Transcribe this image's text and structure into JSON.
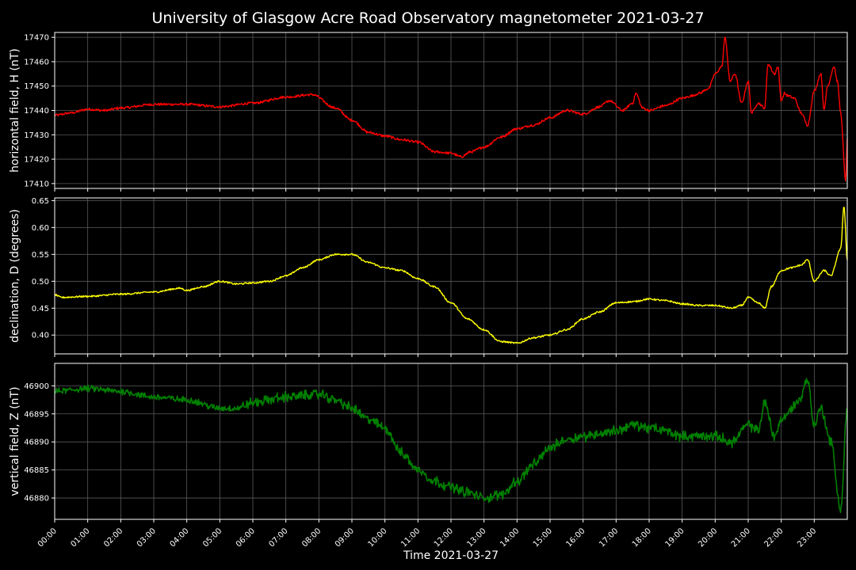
{
  "chart_data": {
    "title": "University of Glasgow Acre Road Observatory magnetometer 2021-03-27",
    "xlabel": "Time 2021-03-27",
    "x_ticks": [
      "00:00",
      "01:00",
      "02:00",
      "03:00",
      "04:00",
      "05:00",
      "06:00",
      "07:00",
      "08:00",
      "09:00",
      "10:00",
      "11:00",
      "12:00",
      "13:00",
      "14:00",
      "15:00",
      "16:00",
      "17:00",
      "18:00",
      "19:00",
      "20:00",
      "21:00",
      "22:00",
      "23:00"
    ],
    "xlim_hours": [
      0,
      24
    ],
    "grid": true,
    "background": "#000000",
    "panels": [
      {
        "type": "line",
        "ylabel": "horizontal field, H (nT)",
        "color": "#ff0000",
        "ylim": [
          17408,
          17472
        ],
        "yticks": [
          17410,
          17420,
          17430,
          17440,
          17450,
          17460,
          17470
        ],
        "tick_decimals": 0,
        "noise": 0.5,
        "points": [
          [
            0,
            17438
          ],
          [
            0.5,
            17439
          ],
          [
            1,
            17440.5
          ],
          [
            1.5,
            17440
          ],
          [
            2,
            17441
          ],
          [
            3,
            17442.5
          ],
          [
            4,
            17442.5
          ],
          [
            5,
            17441.5
          ],
          [
            6,
            17443
          ],
          [
            7,
            17445.5
          ],
          [
            7.8,
            17446.5
          ],
          [
            8.5,
            17441
          ],
          [
            9,
            17436
          ],
          [
            9.5,
            17431
          ],
          [
            10,
            17429.5
          ],
          [
            10.5,
            17428
          ],
          [
            11,
            17427
          ],
          [
            11.5,
            17423
          ],
          [
            12,
            17422.5
          ],
          [
            12.3,
            17421
          ],
          [
            12.6,
            17423
          ],
          [
            13,
            17425
          ],
          [
            13.5,
            17429
          ],
          [
            14,
            17432.5
          ],
          [
            14.5,
            17434
          ],
          [
            15,
            17437
          ],
          [
            15.5,
            17440
          ],
          [
            16,
            17438.5
          ],
          [
            16.5,
            17441.5
          ],
          [
            16.8,
            17444
          ],
          [
            17.2,
            17440
          ],
          [
            17.5,
            17443
          ],
          [
            17.6,
            17447
          ],
          [
            17.8,
            17441
          ],
          [
            18,
            17440
          ],
          [
            18.5,
            17442
          ],
          [
            19,
            17445
          ],
          [
            19.3,
            17446
          ],
          [
            19.5,
            17447
          ],
          [
            19.8,
            17449
          ],
          [
            20,
            17455
          ],
          [
            20.2,
            17458
          ],
          [
            20.3,
            17470
          ],
          [
            20.45,
            17452
          ],
          [
            20.6,
            17455
          ],
          [
            20.8,
            17443
          ],
          [
            21,
            17452
          ],
          [
            21.1,
            17439
          ],
          [
            21.3,
            17443
          ],
          [
            21.5,
            17441
          ],
          [
            21.6,
            17459
          ],
          [
            21.8,
            17455
          ],
          [
            21.9,
            17458
          ],
          [
            22,
            17444
          ],
          [
            22.1,
            17447
          ],
          [
            22.2,
            17446
          ],
          [
            22.4,
            17445
          ],
          [
            22.6,
            17439
          ],
          [
            22.8,
            17434
          ],
          [
            23,
            17448
          ],
          [
            23.2,
            17455
          ],
          [
            23.3,
            17440
          ],
          [
            23.4,
            17450
          ],
          [
            23.6,
            17458
          ],
          [
            23.7,
            17452
          ],
          [
            23.8,
            17439
          ],
          [
            23.95,
            17411
          ],
          [
            24,
            17428
          ]
        ]
      },
      {
        "type": "line",
        "ylabel": "declination, D (degrees)",
        "color": "#ffff00",
        "ylim": [
          0.365,
          0.655
        ],
        "yticks": [
          0.4,
          0.45,
          0.5,
          0.55,
          0.6,
          0.65
        ],
        "tick_decimals": 2,
        "noise": 0.0015,
        "points": [
          [
            0,
            0.475
          ],
          [
            0.2,
            0.47
          ],
          [
            1,
            0.472
          ],
          [
            2,
            0.476
          ],
          [
            3,
            0.48
          ],
          [
            3.8,
            0.487
          ],
          [
            4,
            0.483
          ],
          [
            4.5,
            0.49
          ],
          [
            5,
            0.5
          ],
          [
            5.5,
            0.495
          ],
          [
            6,
            0.497
          ],
          [
            6.5,
            0.5
          ],
          [
            7,
            0.51
          ],
          [
            7.5,
            0.525
          ],
          [
            8,
            0.54
          ],
          [
            8.5,
            0.55
          ],
          [
            9,
            0.55
          ],
          [
            9.5,
            0.535
          ],
          [
            10,
            0.525
          ],
          [
            10.5,
            0.52
          ],
          [
            11,
            0.505
          ],
          [
            11.5,
            0.49
          ],
          [
            12,
            0.46
          ],
          [
            12.5,
            0.43
          ],
          [
            13,
            0.41
          ],
          [
            13.5,
            0.388
          ],
          [
            14,
            0.385
          ],
          [
            14.5,
            0.395
          ],
          [
            15,
            0.4
          ],
          [
            15.5,
            0.41
          ],
          [
            16,
            0.43
          ],
          [
            16.5,
            0.443
          ],
          [
            17,
            0.46
          ],
          [
            17.5,
            0.462
          ],
          [
            18,
            0.467
          ],
          [
            18.5,
            0.464
          ],
          [
            19,
            0.458
          ],
          [
            19.5,
            0.455
          ],
          [
            20,
            0.455
          ],
          [
            20.5,
            0.45
          ],
          [
            20.8,
            0.455
          ],
          [
            21,
            0.47
          ],
          [
            21.3,
            0.46
          ],
          [
            21.5,
            0.45
          ],
          [
            21.7,
            0.49
          ],
          [
            22,
            0.52
          ],
          [
            22.3,
            0.525
          ],
          [
            22.6,
            0.53
          ],
          [
            22.8,
            0.54
          ],
          [
            23,
            0.5
          ],
          [
            23.3,
            0.52
          ],
          [
            23.5,
            0.51
          ],
          [
            23.8,
            0.56
          ],
          [
            23.9,
            0.64
          ],
          [
            24,
            0.54
          ]
        ]
      },
      {
        "type": "line",
        "ylabel": "vertical field, Z (nT)",
        "color": "#008000",
        "ylim": [
          46876.2,
          46904
        ],
        "yticks": [
          46880,
          46885,
          46890,
          46895,
          46900
        ],
        "tick_decimals": 0,
        "noise": 0.5,
        "points": [
          [
            0,
            46899
          ],
          [
            1,
            46899.5
          ],
          [
            2,
            46899
          ],
          [
            3,
            46898
          ],
          [
            4,
            46897.5
          ],
          [
            5,
            46896
          ],
          [
            5.5,
            46896
          ],
          [
            6,
            46897
          ],
          [
            7,
            46898
          ],
          [
            8,
            46898.5
          ],
          [
            8.5,
            46897.5
          ],
          [
            9,
            46896
          ],
          [
            9.5,
            46894
          ],
          [
            10,
            46892.5
          ],
          [
            10.5,
            46888
          ],
          [
            11,
            46885
          ],
          [
            11.5,
            46883
          ],
          [
            12,
            46882
          ],
          [
            12.5,
            46881
          ],
          [
            13,
            46880
          ],
          [
            13.5,
            46880.5
          ],
          [
            14,
            46883
          ],
          [
            14.5,
            46886
          ],
          [
            15,
            46889
          ],
          [
            15.5,
            46890.5
          ],
          [
            16,
            46891
          ],
          [
            16.5,
            46891.5
          ],
          [
            17,
            46892
          ],
          [
            17.5,
            46893
          ],
          [
            18,
            46892.5
          ],
          [
            18.5,
            46892
          ],
          [
            19,
            46891
          ],
          [
            19.5,
            46891
          ],
          [
            20,
            46891
          ],
          [
            20.5,
            46890
          ],
          [
            21,
            46893
          ],
          [
            21.3,
            46892
          ],
          [
            21.5,
            46897
          ],
          [
            21.8,
            46891
          ],
          [
            22,
            46894
          ],
          [
            22.5,
            46897
          ],
          [
            22.8,
            46901
          ],
          [
            23,
            46893
          ],
          [
            23.2,
            46896
          ],
          [
            23.5,
            46890
          ],
          [
            23.8,
            46878
          ],
          [
            24,
            46896
          ]
        ]
      }
    ]
  }
}
